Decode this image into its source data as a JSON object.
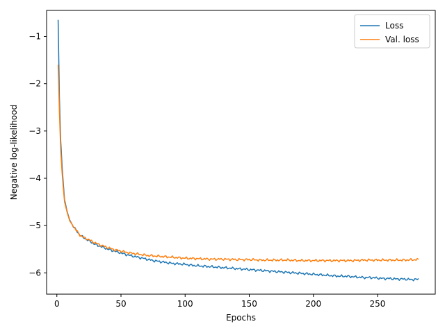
{
  "chart_data": {
    "type": "line",
    "title": "",
    "xlabel": "Epochs",
    "ylabel": "Negative log-likelihood",
    "xlim": [
      -8,
      295
    ],
    "ylim": [
      -6.45,
      -0.45
    ],
    "xticks": [
      0,
      50,
      100,
      150,
      200,
      250
    ],
    "yticks": [
      -6,
      -5,
      -4,
      -3,
      -2,
      -1
    ],
    "grid": false,
    "legend_position": "top-right",
    "series": [
      {
        "name": "Loss",
        "color": "#1f77b4",
        "points": [
          [
            1,
            -0.65
          ],
          [
            2,
            -2.3
          ],
          [
            3,
            -3.2
          ],
          [
            4,
            -3.7
          ],
          [
            5,
            -4.1
          ],
          [
            6,
            -4.45
          ],
          [
            8,
            -4.7
          ],
          [
            10,
            -4.88
          ],
          [
            12,
            -4.98
          ],
          [
            15,
            -5.1
          ],
          [
            18,
            -5.2
          ],
          [
            20,
            -5.24
          ],
          [
            25,
            -5.32
          ],
          [
            30,
            -5.4
          ],
          [
            35,
            -5.45
          ],
          [
            40,
            -5.5
          ],
          [
            45,
            -5.54
          ],
          [
            50,
            -5.58
          ],
          [
            55,
            -5.62
          ],
          [
            60,
            -5.65
          ],
          [
            65,
            -5.68
          ],
          [
            70,
            -5.71
          ],
          [
            75,
            -5.74
          ],
          [
            80,
            -5.76
          ],
          [
            85,
            -5.78
          ],
          [
            90,
            -5.8
          ],
          [
            95,
            -5.81
          ],
          [
            100,
            -5.82
          ],
          [
            105,
            -5.84
          ],
          [
            110,
            -5.85
          ],
          [
            115,
            -5.86
          ],
          [
            120,
            -5.87
          ],
          [
            125,
            -5.88
          ],
          [
            130,
            -5.89
          ],
          [
            135,
            -5.9
          ],
          [
            140,
            -5.91
          ],
          [
            145,
            -5.92
          ],
          [
            150,
            -5.93
          ],
          [
            155,
            -5.94
          ],
          [
            160,
            -5.95
          ],
          [
            165,
            -5.96
          ],
          [
            170,
            -5.97
          ],
          [
            175,
            -5.98
          ],
          [
            180,
            -5.99
          ],
          [
            185,
            -6.0
          ],
          [
            190,
            -6.01
          ],
          [
            195,
            -6.02
          ],
          [
            200,
            -6.03
          ],
          [
            205,
            -6.04
          ],
          [
            210,
            -6.05
          ],
          [
            215,
            -6.06
          ],
          [
            220,
            -6.07
          ],
          [
            225,
            -6.07
          ],
          [
            230,
            -6.08
          ],
          [
            235,
            -6.09
          ],
          [
            240,
            -6.1
          ],
          [
            245,
            -6.1
          ],
          [
            250,
            -6.11
          ],
          [
            255,
            -6.12
          ],
          [
            260,
            -6.12
          ],
          [
            265,
            -6.13
          ],
          [
            270,
            -6.13
          ],
          [
            275,
            -6.14
          ],
          [
            280,
            -6.14
          ],
          [
            282,
            -6.13
          ]
        ]
      },
      {
        "name": "Val. loss",
        "color": "#ff7f0e",
        "points": [
          [
            1,
            -1.6
          ],
          [
            2,
            -2.6
          ],
          [
            3,
            -3.4
          ],
          [
            4,
            -3.85
          ],
          [
            5,
            -4.2
          ],
          [
            6,
            -4.5
          ],
          [
            8,
            -4.72
          ],
          [
            10,
            -4.9
          ],
          [
            12,
            -4.98
          ],
          [
            15,
            -5.1
          ],
          [
            18,
            -5.2
          ],
          [
            20,
            -5.24
          ],
          [
            25,
            -5.3
          ],
          [
            30,
            -5.37
          ],
          [
            35,
            -5.42
          ],
          [
            40,
            -5.47
          ],
          [
            45,
            -5.51
          ],
          [
            50,
            -5.54
          ],
          [
            55,
            -5.57
          ],
          [
            60,
            -5.59
          ],
          [
            65,
            -5.61
          ],
          [
            70,
            -5.63
          ],
          [
            75,
            -5.64
          ],
          [
            80,
            -5.65
          ],
          [
            85,
            -5.66
          ],
          [
            90,
            -5.67
          ],
          [
            95,
            -5.68
          ],
          [
            100,
            -5.69
          ],
          [
            110,
            -5.7
          ],
          [
            120,
            -5.71
          ],
          [
            130,
            -5.71
          ],
          [
            140,
            -5.72
          ],
          [
            150,
            -5.72
          ],
          [
            160,
            -5.73
          ],
          [
            170,
            -5.73
          ],
          [
            180,
            -5.73
          ],
          [
            190,
            -5.74
          ],
          [
            200,
            -5.74
          ],
          [
            210,
            -5.74
          ],
          [
            220,
            -5.74
          ],
          [
            230,
            -5.74
          ],
          [
            240,
            -5.73
          ],
          [
            250,
            -5.73
          ],
          [
            260,
            -5.73
          ],
          [
            270,
            -5.73
          ],
          [
            282,
            -5.72
          ]
        ]
      }
    ]
  }
}
